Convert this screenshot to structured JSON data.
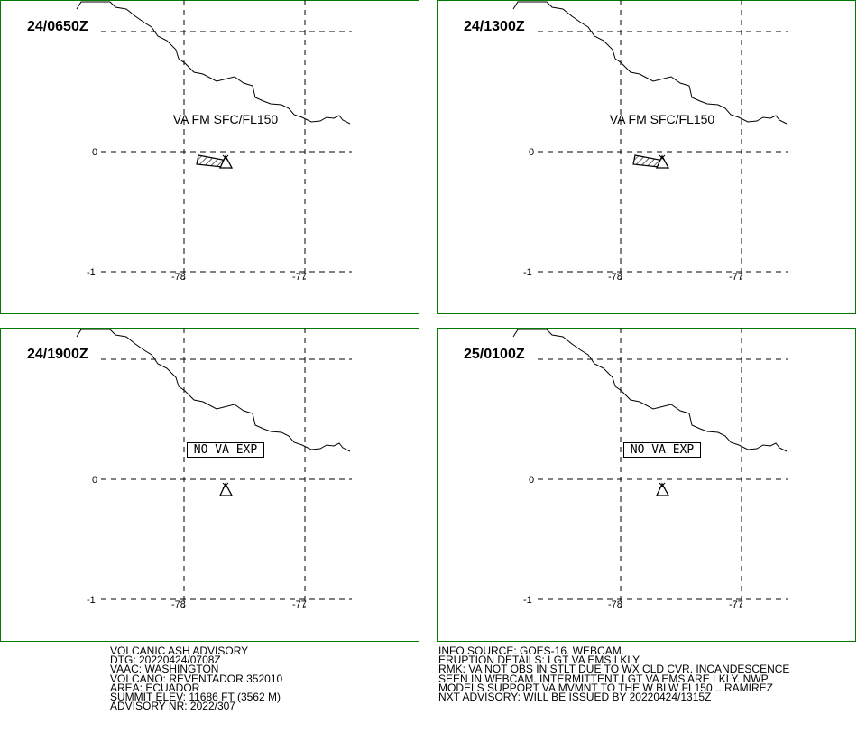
{
  "panels": [
    {
      "time": "24/0650Z",
      "annotation": "VA FM SFC/FL150",
      "ash": true
    },
    {
      "time": "24/1300Z",
      "annotation": "VA FM SFC/FL150",
      "ash": true
    },
    {
      "time": "24/1900Z",
      "annotation": "NO VA EXP",
      "ash": false
    },
    {
      "time": "25/0100Z",
      "annotation": "NO VA EXP",
      "ash": false
    }
  ],
  "grid_labels": {
    "lat": [
      "0",
      "-1"
    ],
    "lon": [
      "-78",
      "-77"
    ]
  },
  "advisory_left": [
    "VOLCANIC ASH ADVISORY",
    "DTG: 20220424/0708Z",
    "VAAC: WASHINGTON",
    "VOLCANO: REVENTADOR 352010",
    "AREA: ECUADOR",
    "SUMMIT ELEV: 11686 FT (3562 M)",
    "ADVISORY NR: 2022/307"
  ],
  "advisory_right": [
    "INFO SOURCE: GOES-16. WEBCAM.",
    "ERUPTION DETAILS: LGT VA EMS LKLY",
    "RMK: VA NOT OBS IN STLT DUE TO WX CLD CVR. INCANDESCENCE",
    "SEEN IN WEBCAM. INTERMITTENT LGT VA EMS ARE LKLY. NWP",
    "MODELS SUPPORT VA MVMNT TO THE W BLW FL150 ...RAMIREZ",
    "NXT ADVISORY: WILL BE ISSUED BY 20220424/1315Z"
  ]
}
